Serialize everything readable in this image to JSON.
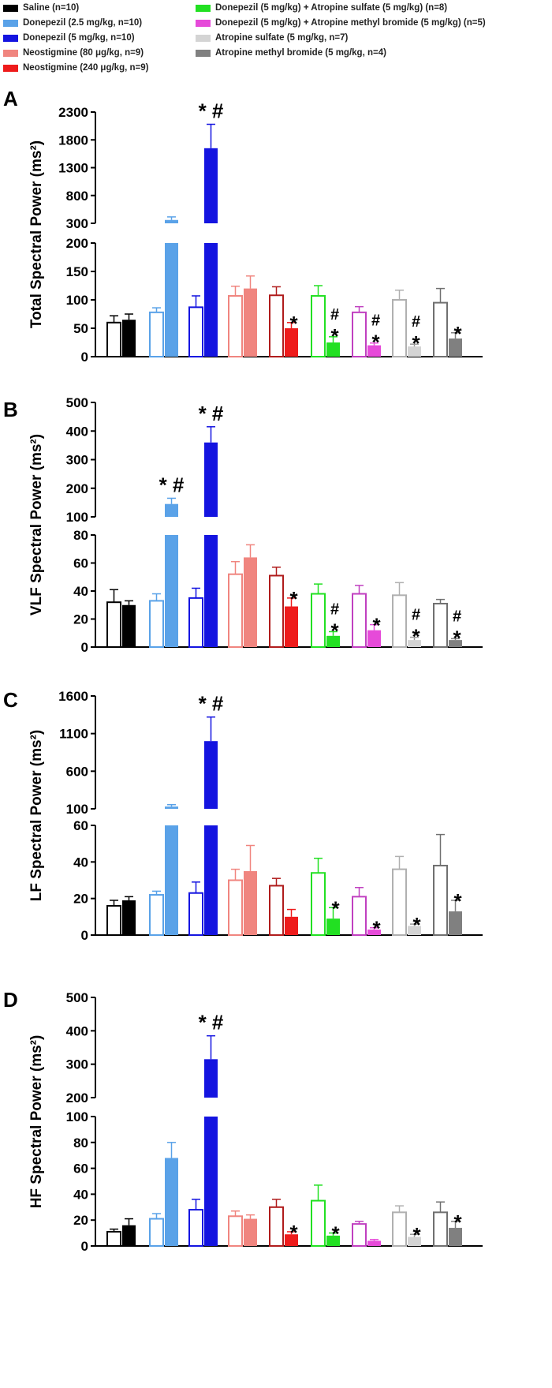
{
  "legend": {
    "items": [
      {
        "label": "Saline (n=10)",
        "color": "#000000"
      },
      {
        "label": "Donepezil (2.5 mg/kg, n=10)",
        "color": "#5aa2e8"
      },
      {
        "label": "Donepezil (5 mg/kg, n=10)",
        "color": "#1414e0"
      },
      {
        "label": "Neostigmine (80 μg/kg, n=9)",
        "color": "#f0857f"
      },
      {
        "label": "Neostigmine (240 μg/kg, n=9)",
        "color": "#ee1b1b"
      },
      {
        "label": "Donepezil (5 mg/kg) + Atropine sulfate (5 mg/kg) (n=8)",
        "color": "#22e022"
      },
      {
        "label": "Donepezil (5 mg/kg) + Atropine methyl bromide (5 mg/kg) (n=5)",
        "color": "#e64ad9"
      },
      {
        "label": "Atropine sulfate (5 mg/kg, n=7)",
        "color": "#d4d4d4"
      },
      {
        "label": "Atropine methyl bromide (5 mg/kg, n=4)",
        "color": "#808080"
      }
    ]
  },
  "chart_data": [
    {
      "panel": "A",
      "type": "bar",
      "ylabel": "Total Spectral Power (ms²)",
      "y_lower": {
        "range": [
          0,
          200
        ],
        "ticks": [
          "0",
          "50",
          "100",
          "150",
          "200"
        ]
      },
      "y_upper": {
        "range": [
          300,
          2300
        ],
        "ticks": [
          "300",
          "800",
          "1300",
          "1800",
          "2300"
        ]
      },
      "groups": [
        {
          "name": "Saline",
          "open": {
            "mean": 60,
            "sem": 12
          },
          "filled": {
            "mean": 65,
            "sem": 10,
            "marks": ""
          }
        },
        {
          "name": "Donepezil 2.5 mg/kg",
          "open": {
            "mean": 78,
            "sem": 8
          },
          "filled": {
            "mean": 360,
            "sem": 55,
            "marks": ""
          }
        },
        {
          "name": "Donepezil 5 mg/kg",
          "open": {
            "mean": 87,
            "sem": 20
          },
          "filled": {
            "mean": 1650,
            "sem": 430,
            "marks": "*#"
          }
        },
        {
          "name": "Neostigmine 80 μg/kg",
          "open": {
            "mean": 107,
            "sem": 17
          },
          "filled": {
            "mean": 120,
            "sem": 22,
            "marks": ""
          }
        },
        {
          "name": "Neostigmine 240 μg/kg",
          "open": {
            "mean": 108,
            "sem": 15
          },
          "filled": {
            "mean": 50,
            "sem": 10,
            "marks": "*"
          }
        },
        {
          "name": "Donepezil + Atropine sulfate",
          "open": {
            "mean": 107,
            "sem": 18
          },
          "filled": {
            "mean": 25,
            "sem": 10,
            "marks": "#*"
          }
        },
        {
          "name": "Donepezil + Atropine methyl bromide",
          "open": {
            "mean": 78,
            "sem": 10
          },
          "filled": {
            "mean": 20,
            "sem": 4,
            "marks": "#*"
          }
        },
        {
          "name": "Atropine sulfate",
          "open": {
            "mean": 100,
            "sem": 17
          },
          "filled": {
            "mean": 18,
            "sem": 4,
            "marks": "#*"
          }
        },
        {
          "name": "Atropine methyl bromide",
          "open": {
            "mean": 95,
            "sem": 25
          },
          "filled": {
            "mean": 32,
            "sem": 10,
            "marks": "*"
          }
        }
      ]
    },
    {
      "panel": "B",
      "type": "bar",
      "ylabel": "VLF Spectral Power (ms²)",
      "y_lower": {
        "range": [
          0,
          80
        ],
        "ticks": [
          "0",
          "20",
          "40",
          "60",
          "80"
        ]
      },
      "y_upper": {
        "range": [
          100,
          500
        ],
        "ticks": [
          "100",
          "200",
          "300",
          "400",
          "500"
        ]
      },
      "groups": [
        {
          "name": "Saline",
          "open": {
            "mean": 32,
            "sem": 9
          },
          "filled": {
            "mean": 30,
            "sem": 3,
            "marks": ""
          }
        },
        {
          "name": "Donepezil 2.5 mg/kg",
          "open": {
            "mean": 33,
            "sem": 5
          },
          "filled": {
            "mean": 145,
            "sem": 20,
            "marks": "*#"
          }
        },
        {
          "name": "Donepezil 5 mg/kg",
          "open": {
            "mean": 35,
            "sem": 7
          },
          "filled": {
            "mean": 360,
            "sem": 55,
            "marks": "*#"
          }
        },
        {
          "name": "Neostigmine 80 μg/kg",
          "open": {
            "mean": 52,
            "sem": 9
          },
          "filled": {
            "mean": 64,
            "sem": 9,
            "marks": ""
          }
        },
        {
          "name": "Neostigmine 240 μg/kg",
          "open": {
            "mean": 51,
            "sem": 6
          },
          "filled": {
            "mean": 29,
            "sem": 6,
            "marks": "*"
          }
        },
        {
          "name": "Donepezil + Atropine sulfate",
          "open": {
            "mean": 38,
            "sem": 7
          },
          "filled": {
            "mean": 8,
            "sem": 3,
            "marks": "#*"
          }
        },
        {
          "name": "Donepezil + Atropine methyl bromide",
          "open": {
            "mean": 38,
            "sem": 6
          },
          "filled": {
            "mean": 12,
            "sem": 4,
            "marks": "*"
          }
        },
        {
          "name": "Atropine sulfate",
          "open": {
            "mean": 37,
            "sem": 9
          },
          "filled": {
            "mean": 5,
            "sem": 2,
            "marks": "#*"
          }
        },
        {
          "name": "Atropine methyl bromide",
          "open": {
            "mean": 31,
            "sem": 3
          },
          "filled": {
            "mean": 5,
            "sem": 1,
            "marks": "#*"
          }
        }
      ]
    },
    {
      "panel": "C",
      "type": "bar",
      "ylabel": "LF Spectral Power (ms²)",
      "y_lower": {
        "range": [
          0,
          60
        ],
        "ticks": [
          "0",
          "20",
          "40",
          "60"
        ]
      },
      "y_upper": {
        "range": [
          100,
          1600
        ],
        "ticks": [
          "100",
          "600",
          "1100",
          "1600"
        ]
      },
      "groups": [
        {
          "name": "Saline",
          "open": {
            "mean": 16,
            "sem": 3
          },
          "filled": {
            "mean": 19,
            "sem": 2,
            "marks": ""
          }
        },
        {
          "name": "Donepezil 2.5 mg/kg",
          "open": {
            "mean": 22,
            "sem": 2
          },
          "filled": {
            "mean": 130,
            "sem": 25,
            "marks": ""
          }
        },
        {
          "name": "Donepezil 5 mg/kg",
          "open": {
            "mean": 23,
            "sem": 6
          },
          "filled": {
            "mean": 1000,
            "sem": 320,
            "marks": "*#"
          }
        },
        {
          "name": "Neostigmine 80 μg/kg",
          "open": {
            "mean": 30,
            "sem": 6
          },
          "filled": {
            "mean": 35,
            "sem": 14,
            "marks": ""
          }
        },
        {
          "name": "Neostigmine 240 μg/kg",
          "open": {
            "mean": 27,
            "sem": 4
          },
          "filled": {
            "mean": 10,
            "sem": 4,
            "marks": ""
          }
        },
        {
          "name": "Donepezil + Atropine sulfate",
          "open": {
            "mean": 34,
            "sem": 8
          },
          "filled": {
            "mean": 9,
            "sem": 6,
            "marks": "*"
          }
        },
        {
          "name": "Donepezil + Atropine methyl bromide",
          "open": {
            "mean": 21,
            "sem": 5
          },
          "filled": {
            "mean": 3,
            "sem": 1,
            "marks": "*"
          }
        },
        {
          "name": "Atropine sulfate",
          "open": {
            "mean": 36,
            "sem": 7
          },
          "filled": {
            "mean": 5,
            "sem": 1,
            "marks": "*"
          }
        },
        {
          "name": "Atropine methyl bromide",
          "open": {
            "mean": 38,
            "sem": 17
          },
          "filled": {
            "mean": 13,
            "sem": 6,
            "marks": "*"
          }
        }
      ]
    },
    {
      "panel": "D",
      "type": "bar",
      "ylabel": "HF Spectral Power (ms²)",
      "y_lower": {
        "range": [
          0,
          100
        ],
        "ticks": [
          "0",
          "20",
          "40",
          "60",
          "80",
          "100"
        ]
      },
      "y_upper": {
        "range": [
          200,
          500
        ],
        "ticks": [
          "200",
          "300",
          "400",
          "500"
        ]
      },
      "groups": [
        {
          "name": "Saline",
          "open": {
            "mean": 11,
            "sem": 2
          },
          "filled": {
            "mean": 16,
            "sem": 5,
            "marks": ""
          }
        },
        {
          "name": "Donepezil 2.5 mg/kg",
          "open": {
            "mean": 21,
            "sem": 4
          },
          "filled": {
            "mean": 68,
            "sem": 12,
            "marks": ""
          }
        },
        {
          "name": "Donepezil 5 mg/kg",
          "open": {
            "mean": 28,
            "sem": 8
          },
          "filled": {
            "mean": 315,
            "sem": 70,
            "marks": "*#"
          }
        },
        {
          "name": "Neostigmine 80 μg/kg",
          "open": {
            "mean": 23,
            "sem": 4
          },
          "filled": {
            "mean": 21,
            "sem": 3,
            "marks": ""
          }
        },
        {
          "name": "Neostigmine 240 μg/kg",
          "open": {
            "mean": 30,
            "sem": 6
          },
          "filled": {
            "mean": 9,
            "sem": 2,
            "marks": "*"
          }
        },
        {
          "name": "Donepezil + Atropine sulfate",
          "open": {
            "mean": 35,
            "sem": 12
          },
          "filled": {
            "mean": 8,
            "sem": 2,
            "marks": "*"
          }
        },
        {
          "name": "Donepezil + Atropine methyl bromide",
          "open": {
            "mean": 17,
            "sem": 2
          },
          "filled": {
            "mean": 4,
            "sem": 1,
            "marks": ""
          }
        },
        {
          "name": "Atropine sulfate",
          "open": {
            "mean": 26,
            "sem": 5
          },
          "filled": {
            "mean": 7,
            "sem": 2,
            "marks": "*"
          }
        },
        {
          "name": "Atropine methyl bromide",
          "open": {
            "mean": 26,
            "sem": 8
          },
          "filled": {
            "mean": 14,
            "sem": 5,
            "marks": "*"
          }
        }
      ]
    }
  ]
}
